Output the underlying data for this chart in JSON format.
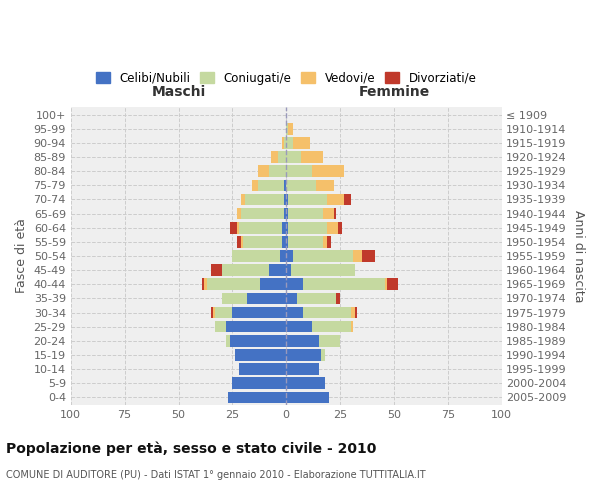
{
  "age_groups": [
    "0-4",
    "5-9",
    "10-14",
    "15-19",
    "20-24",
    "25-29",
    "30-34",
    "35-39",
    "40-44",
    "45-49",
    "50-54",
    "55-59",
    "60-64",
    "65-69",
    "70-74",
    "75-79",
    "80-84",
    "85-89",
    "90-94",
    "95-99",
    "100+"
  ],
  "birth_years": [
    "2005-2009",
    "2000-2004",
    "1995-1999",
    "1990-1994",
    "1985-1989",
    "1980-1984",
    "1975-1979",
    "1970-1974",
    "1965-1969",
    "1960-1964",
    "1955-1959",
    "1950-1954",
    "1945-1949",
    "1940-1944",
    "1935-1939",
    "1930-1934",
    "1925-1929",
    "1920-1924",
    "1915-1919",
    "1910-1914",
    "≤ 1909"
  ],
  "maschi": {
    "celibi": [
      27,
      25,
      22,
      24,
      26,
      28,
      25,
      18,
      12,
      8,
      3,
      2,
      2,
      1,
      1,
      1,
      0,
      0,
      0,
      0,
      0
    ],
    "coniugati": [
      0,
      0,
      0,
      0,
      2,
      5,
      8,
      12,
      25,
      22,
      22,
      18,
      20,
      20,
      18,
      12,
      8,
      4,
      1,
      0,
      0
    ],
    "vedovi": [
      0,
      0,
      0,
      0,
      0,
      0,
      1,
      0,
      1,
      0,
      0,
      1,
      1,
      2,
      2,
      3,
      5,
      3,
      1,
      0,
      0
    ],
    "divorziati": [
      0,
      0,
      0,
      0,
      0,
      0,
      1,
      0,
      1,
      5,
      0,
      2,
      3,
      0,
      0,
      0,
      0,
      0,
      0,
      0,
      0
    ]
  },
  "femmine": {
    "nubili": [
      20,
      18,
      15,
      16,
      15,
      12,
      8,
      5,
      8,
      2,
      3,
      1,
      1,
      1,
      1,
      0,
      0,
      0,
      0,
      0,
      0
    ],
    "coniugate": [
      0,
      0,
      0,
      2,
      10,
      18,
      22,
      18,
      38,
      30,
      28,
      16,
      18,
      16,
      18,
      14,
      12,
      7,
      3,
      1,
      0
    ],
    "vedove": [
      0,
      0,
      0,
      0,
      0,
      1,
      2,
      0,
      1,
      0,
      4,
      2,
      5,
      5,
      8,
      8,
      15,
      10,
      8,
      2,
      0
    ],
    "divorziate": [
      0,
      0,
      0,
      0,
      0,
      0,
      1,
      2,
      5,
      0,
      6,
      2,
      2,
      1,
      3,
      0,
      0,
      0,
      0,
      0,
      0
    ]
  },
  "colors": {
    "celibi": "#4472c4",
    "coniugati": "#c5d9a0",
    "vedovi": "#f5c06a",
    "divorziati": "#c0392b"
  },
  "xlim": 100,
  "title": "Popolazione per età, sesso e stato civile - 2010",
  "subtitle": "COMUNE DI AUDITORE (PU) - Dati ISTAT 1° gennaio 2010 - Elaborazione TUTTITALIA.IT",
  "ylabel_left": "Fasce di età",
  "ylabel_right": "Anni di nascita",
  "legend_labels": [
    "Celibi/Nubili",
    "Coniugati/e",
    "Vedovi/e",
    "Divorziati/e"
  ],
  "maschi_label": "Maschi",
  "femmine_label": "Femmine",
  "bg_color": "#efefef"
}
